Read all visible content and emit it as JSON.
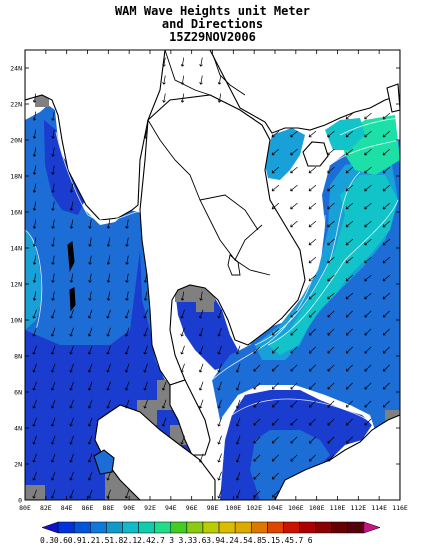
{
  "title": {
    "line1": "WAM Wave Heights unit Meter",
    "line2": "and Directions",
    "line3": "15Z29NOV2006"
  },
  "axes": {
    "lat_ticks": [
      "0",
      "2N",
      "4N",
      "6N",
      "8N",
      "10N",
      "12N",
      "14N",
      "16N",
      "18N",
      "20N",
      "22N",
      "24N"
    ],
    "lon_ticks": [
      "80E",
      "82E",
      "84E",
      "86E",
      "88E",
      "90E",
      "92E",
      "94E",
      "96E",
      "98E",
      "100E",
      "102E",
      "104E",
      "106E",
      "108E",
      "110E",
      "112E",
      "114E",
      "116E"
    ],
    "lon_range": [
      80,
      116
    ],
    "lat_range": [
      0,
      25
    ]
  },
  "colorbar": {
    "labels_text": "0.30.60.91.21.51.82.12.42.7 3 3.33.63.94.24.54.85.15.45.7 6",
    "levels": [
      0.3,
      0.6,
      0.9,
      1.2,
      1.5,
      1.8,
      2.1,
      2.4,
      2.7,
      3,
      3.3,
      3.6,
      3.9,
      4.2,
      4.5,
      4.8,
      5.1,
      5.4,
      5.7,
      6
    ],
    "colors": [
      "#1111cc",
      "#0033dd",
      "#0055dd",
      "#1177dd",
      "#1199cc",
      "#11bbcc",
      "#11ccaa",
      "#22dd88",
      "#44cc22",
      "#88cc11",
      "#bbcc00",
      "#ddbb00",
      "#ddaa00",
      "#dd7700",
      "#dd4400",
      "#cc1100",
      "#aa0000",
      "#880000",
      "#660000",
      "#550011",
      "#cc1188"
    ]
  },
  "colors": {
    "deep": "#1a3ccf",
    "mid": "#1c6ed6",
    "light": "#19a0d8",
    "teal": "#12c3c9",
    "aqua": "#1de0a8",
    "land_gray": "#808080"
  }
}
